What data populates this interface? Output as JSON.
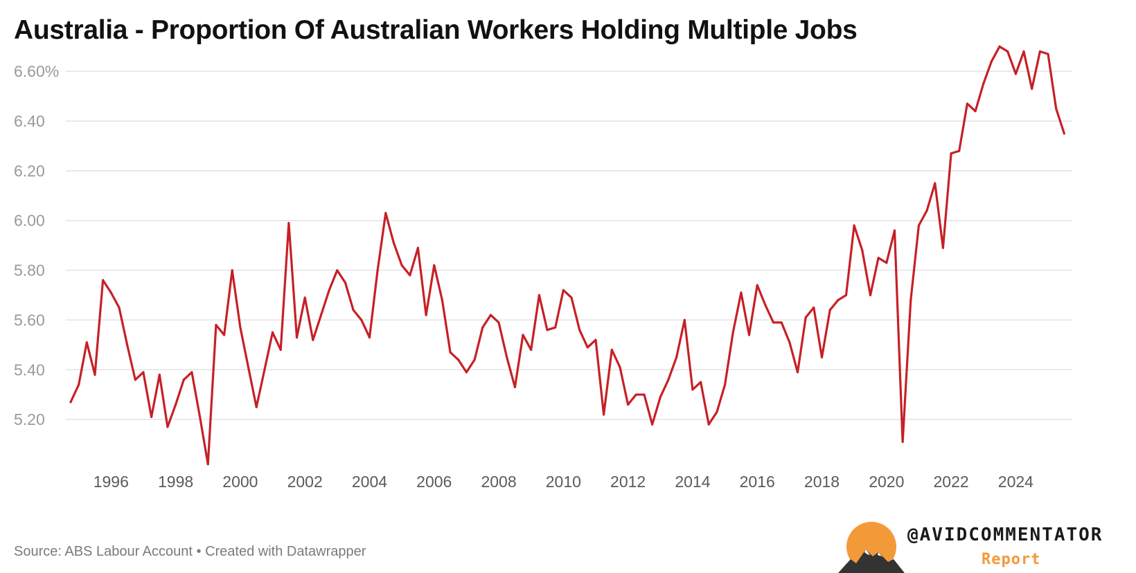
{
  "title": "Australia - Proportion Of Australian Workers Holding Multiple Jobs",
  "source": "Source: ABS Labour Account • Created with Datawrapper",
  "branding": {
    "handle": "@AVIDCOMMENTATOR",
    "subtitle": "Report",
    "logo_icon": "sunset-mountains-icon",
    "colors": {
      "sun": "#f39a38",
      "mountains": "#333333"
    }
  },
  "colors": {
    "line": "#c62026",
    "grid": "#e3e3e3"
  },
  "chart_data": {
    "type": "line",
    "title": "Australia - Proportion Of Australian Workers Holding Multiple Jobs",
    "xlabel": "",
    "ylabel": "",
    "unit": "%",
    "ylim": [
      5.0,
      6.72
    ],
    "yticks": [
      5.2,
      5.4,
      5.6,
      5.8,
      6.0,
      6.2,
      6.4,
      6.6
    ],
    "ytick_labels": [
      "5.20",
      "5.40",
      "5.60",
      "5.80",
      "6.00",
      "6.20",
      "6.40",
      "6.60%"
    ],
    "xlim": [
      1994.6,
      2025.75
    ],
    "xticks": [
      1996,
      1998,
      2000,
      2002,
      2004,
      2006,
      2008,
      2010,
      2012,
      2014,
      2016,
      2018,
      2020,
      2022,
      2024
    ],
    "xtick_labels": [
      "1996",
      "1998",
      "2000",
      "2002",
      "2004",
      "2006",
      "2008",
      "2010",
      "2012",
      "2014",
      "2016",
      "2018",
      "2020",
      "2022",
      "2024"
    ],
    "grid": true,
    "legend": "none",
    "series": [
      {
        "x": [
          1994.75,
          1995.0,
          1995.25,
          1995.5,
          1995.75,
          1996.0,
          1996.25,
          1996.5,
          1996.75,
          1997.0,
          1997.25,
          1997.5,
          1997.75,
          1998.0,
          1998.25,
          1998.5,
          1998.75,
          1999.0,
          1999.25,
          1999.5,
          1999.75,
          2000.0,
          2000.25,
          2000.5,
          2000.75,
          2001.0,
          2001.25,
          2001.5,
          2001.75,
          2002.0,
          2002.25,
          2002.5,
          2002.75,
          2003.0,
          2003.25,
          2003.5,
          2003.75,
          2004.0,
          2004.25,
          2004.5,
          2004.75,
          2005.0,
          2005.25,
          2005.5,
          2005.75,
          2006.0,
          2006.25,
          2006.5,
          2006.75,
          2007.0,
          2007.25,
          2007.5,
          2007.75,
          2008.0,
          2008.25,
          2008.5,
          2008.75,
          2009.0,
          2009.25,
          2009.5,
          2009.75,
          2010.0,
          2010.25,
          2010.5,
          2010.75,
          2011.0,
          2011.25,
          2011.5,
          2011.75,
          2012.0,
          2012.25,
          2012.5,
          2012.75,
          2013.0,
          2013.25,
          2013.5,
          2013.75,
          2014.0,
          2014.25,
          2014.5,
          2014.75,
          2015.0,
          2015.25,
          2015.5,
          2015.75,
          2016.0,
          2016.25,
          2016.5,
          2016.75,
          2017.0,
          2017.25,
          2017.5,
          2017.75,
          2018.0,
          2018.25,
          2018.5,
          2018.75,
          2019.0,
          2019.25,
          2019.5,
          2019.75,
          2020.0,
          2020.25,
          2020.5,
          2020.75,
          2021.0,
          2021.25,
          2021.5,
          2021.75,
          2022.0,
          2022.25,
          2022.5,
          2022.75,
          2023.0,
          2023.25,
          2023.5,
          2023.75,
          2024.0,
          2024.25,
          2024.5,
          2024.75,
          2025.0,
          2025.25,
          2025.5
        ],
        "values": [
          5.27,
          5.34,
          5.51,
          5.38,
          5.76,
          5.71,
          5.65,
          5.5,
          5.36,
          5.39,
          5.21,
          5.38,
          5.17,
          5.26,
          5.36,
          5.39,
          5.21,
          5.02,
          5.58,
          5.54,
          5.8,
          5.57,
          5.41,
          5.25,
          5.4,
          5.55,
          5.48,
          5.99,
          5.53,
          5.69,
          5.52,
          5.62,
          5.72,
          5.8,
          5.75,
          5.64,
          5.6,
          5.53,
          5.8,
          6.03,
          5.91,
          5.82,
          5.78,
          5.89,
          5.62,
          5.82,
          5.68,
          5.47,
          5.44,
          5.39,
          5.44,
          5.57,
          5.62,
          5.59,
          5.45,
          5.33,
          5.54,
          5.48,
          5.7,
          5.56,
          5.57,
          5.72,
          5.69,
          5.56,
          5.49,
          5.52,
          5.22,
          5.48,
          5.41,
          5.26,
          5.3,
          5.3,
          5.18,
          5.29,
          5.36,
          5.45,
          5.6,
          5.32,
          5.35,
          5.18,
          5.23,
          5.34,
          5.55,
          5.71,
          5.54,
          5.74,
          5.66,
          5.59,
          5.59,
          5.51,
          5.39,
          5.61,
          5.65,
          5.45,
          5.64,
          5.68,
          5.7,
          5.98,
          5.88,
          5.7,
          5.85,
          5.83,
          5.96,
          5.11,
          5.68,
          5.98,
          6.04,
          6.15,
          5.89,
          6.27,
          6.28,
          6.47,
          6.44,
          6.55,
          6.64,
          6.7,
          6.68,
          6.59,
          6.68,
          6.53,
          6.68,
          6.67,
          6.45,
          6.35
        ]
      }
    ]
  }
}
